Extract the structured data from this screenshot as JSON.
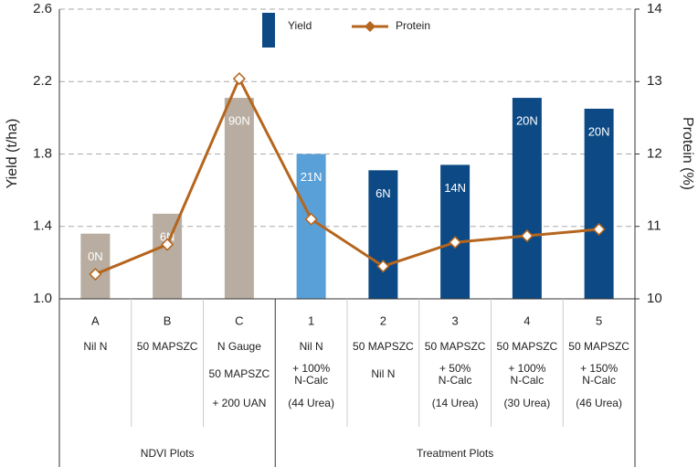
{
  "chart_data": {
    "type": "bar-line",
    "categories": [
      "A",
      "B",
      "C",
      "1",
      "2",
      "3",
      "4",
      "5"
    ],
    "series": [
      {
        "name": "Yield",
        "type": "bar",
        "color": "#0d4a85",
        "colors": [
          "#b8ada0",
          "#b8ada0",
          "#b8ada0",
          "#5aa0d8",
          "#0d4a85",
          "#0d4a85",
          "#0d4a85",
          "#0d4a85"
        ],
        "values": [
          1.36,
          1.47,
          2.11,
          1.8,
          1.71,
          1.74,
          2.11,
          2.05
        ],
        "bar_labels": [
          "0N",
          "6N",
          "90N",
          "21N",
          "6N",
          "14N",
          "20N",
          "20N"
        ]
      },
      {
        "name": "Protein",
        "type": "line",
        "axis": "y2",
        "color": "#b5651d",
        "values": [
          10.34,
          10.75,
          13.04,
          11.1,
          10.45,
          10.78,
          10.87,
          10.96
        ]
      }
    ],
    "ylabel": "Yield (t/ha)",
    "y2label": "Protein (%)",
    "ylim": [
      1,
      2.6
    ],
    "yticks": [
      {
        "value": 1,
        "label": "1.0"
      },
      1.4,
      1.8,
      2.2,
      2.6
    ],
    "y2lim": [
      10,
      14
    ],
    "y2ticks": [
      10,
      11,
      12,
      13,
      14
    ],
    "grid": true,
    "table_rows": [
      [
        "Nil N",
        "50 MAPSZC",
        "N Gauge",
        "Nil N",
        "50 MAPSZC",
        "50 MAPSZC",
        "50 MAPSZC",
        "50 MAPSZC"
      ],
      [
        null,
        null,
        "50 MAPSZC",
        [
          "+ 100%",
          "N-Calc"
        ],
        "Nil N",
        [
          "+ 50%",
          "N-Calc"
        ],
        [
          "+ 100%",
          "N-Calc"
        ],
        [
          "+ 150%",
          "N-Calc"
        ]
      ],
      [
        null,
        null,
        "+ 200 UAN",
        "(44 Urea)",
        null,
        "(14 Urea)",
        "(30 Urea)",
        "(46 Urea)"
      ]
    ],
    "groups": [
      {
        "label": "NDVI Plots",
        "span": [
          0,
          2
        ]
      },
      {
        "label": "Treatment Plots",
        "span": [
          3,
          7
        ]
      }
    ]
  }
}
